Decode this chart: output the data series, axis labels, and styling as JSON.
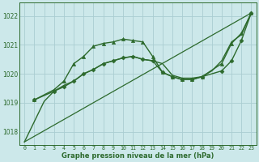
{
  "bg_color": "#cce8ea",
  "grid_color": "#aacdd2",
  "line_color": "#2d6a2d",
  "xlabel": "Graphe pression niveau de la mer (hPa)",
  "ylim": [
    1017.55,
    1022.45
  ],
  "xlim": [
    -0.5,
    23.5
  ],
  "yticks": [
    1018,
    1019,
    1020,
    1021,
    1022
  ],
  "xticks": [
    0,
    1,
    2,
    3,
    4,
    5,
    6,
    7,
    8,
    9,
    10,
    11,
    12,
    13,
    14,
    15,
    16,
    17,
    18,
    19,
    20,
    21,
    22,
    23
  ],
  "series": [
    {
      "x": [
        0,
        1,
        2,
        3,
        4,
        5,
        6,
        7,
        8,
        9,
        10,
        11,
        12,
        13,
        14,
        15,
        16,
        17,
        18,
        19,
        20,
        21,
        22,
        23
      ],
      "y": [
        1017.65,
        1018.35,
        1019.05,
        1019.4,
        1019.6,
        1019.75,
        1020.0,
        1020.15,
        1020.35,
        1020.45,
        1020.55,
        1020.6,
        1020.5,
        1020.45,
        1020.35,
        1019.95,
        1019.85,
        1019.85,
        1019.9,
        1020.1,
        1020.45,
        1021.1,
        1021.35,
        1022.1
      ],
      "marker": null,
      "linewidth": 1.0
    },
    {
      "x": [
        0,
        23
      ],
      "y": [
        1017.65,
        1022.1
      ],
      "marker": null,
      "linewidth": 0.9
    },
    {
      "x": [
        1,
        3,
        4,
        5,
        6,
        7,
        8,
        9,
        10,
        11,
        12,
        13,
        14,
        15,
        16,
        17,
        18,
        20,
        21,
        22,
        23
      ],
      "y": [
        1019.1,
        1019.45,
        1019.75,
        1020.35,
        1020.6,
        1020.95,
        1021.05,
        1021.1,
        1021.2,
        1021.15,
        1021.1,
        1020.6,
        1020.05,
        1019.9,
        1019.8,
        1019.8,
        1019.9,
        1020.35,
        1021.05,
        1021.4,
        1022.1
      ],
      "marker": "^",
      "markersize": 3.0,
      "linewidth": 1.0
    },
    {
      "x": [
        1,
        3,
        4,
        5,
        6,
        7,
        8,
        9,
        10,
        11,
        12,
        13,
        14,
        15,
        16,
        17,
        18,
        20,
        21,
        22,
        23
      ],
      "y": [
        1019.1,
        1019.4,
        1019.55,
        1019.75,
        1020.0,
        1020.15,
        1020.35,
        1020.45,
        1020.55,
        1020.6,
        1020.5,
        1020.45,
        1020.05,
        1019.9,
        1019.8,
        1019.8,
        1019.9,
        1020.1,
        1020.45,
        1021.15,
        1022.1
      ],
      "marker": "D",
      "markersize": 2.5,
      "linewidth": 1.0
    }
  ]
}
